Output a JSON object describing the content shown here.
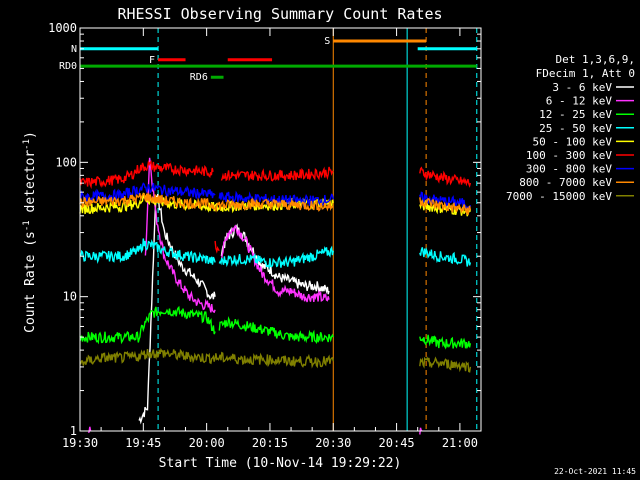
{
  "chart_data": {
    "type": "line",
    "title": "RHESSI Observing Summary Count Rates",
    "xlabel": "Start Time (10-Nov-14 19:29:22)",
    "ylabel_main": "Count Rate (s",
    "ylabel_sup1": "-1",
    "ylabel_mid": " detector",
    "ylabel_sup2": "-1",
    "ylabel_end": ")",
    "y_scale": "log",
    "ylim": [
      1,
      1000
    ],
    "xlim_minutes_after_1930": [
      0,
      95
    ],
    "x_ticks": [
      {
        "t": 0,
        "label": "19:30"
      },
      {
        "t": 15,
        "label": "19:45"
      },
      {
        "t": 30,
        "label": "20:00"
      },
      {
        "t": 45,
        "label": "20:15"
      },
      {
        "t": 60,
        "label": "20:30"
      },
      {
        "t": 75,
        "label": "20:45"
      },
      {
        "t": 90,
        "label": "21:00"
      }
    ],
    "y_ticks": [
      {
        "v": 1,
        "label": "1"
      },
      {
        "v": 10,
        "label": "10"
      },
      {
        "v": 100,
        "label": "100"
      },
      {
        "v": 1000,
        "label": "1000"
      }
    ],
    "legend_header": [
      "Det 1,3,6,9,",
      "FDecim 1, Att 0"
    ],
    "series": [
      {
        "name": "3 - 6 keV",
        "color": "#ffffff",
        "segments": [
          {
            "x": [
              14,
              16,
              18,
              19,
              20,
              22,
              24,
              26,
              28,
              29,
              30,
              31,
              32
            ],
            "y": [
              1.2,
              1.5,
              60,
              45,
              30,
              22,
              17,
              15,
              13,
              12,
              11,
              10,
              10
            ]
          },
          {
            "x": [
              33.5,
              35,
              37,
              39,
              41,
              43,
              45,
              47,
              50,
              53,
              56,
              59
            ],
            "y": [
              22,
              28,
              32,
              28,
              22,
              17,
              16,
              14,
              13,
              12,
              12,
              11
            ]
          }
        ]
      },
      {
        "name": "6 - 12 keV",
        "color": "#ff33ff",
        "segments": [
          {
            "x": [
              2,
              2.5
            ],
            "y": [
              1,
              1
            ]
          },
          {
            "x": [
              15.5,
              16.5,
              18,
              19,
              20,
              22,
              24,
              26,
              28,
              30,
              32
            ],
            "y": [
              20,
              110,
              40,
              28,
              20,
              15,
              12,
              10,
              9,
              8.5,
              8
            ]
          },
          {
            "x": [
              33.5,
              35,
              37,
              39,
              41,
              43,
              45,
              47,
              50,
              53,
              56,
              59
            ],
            "y": [
              20,
              30,
              33,
              27,
              20,
              15,
              13,
              11,
              11,
              10,
              10,
              9.5
            ]
          },
          {
            "x": [
              80.5,
              81
            ],
            "y": [
              1,
              1
            ]
          }
        ]
      },
      {
        "name": "12 - 25 keV",
        "color": "#00ff00",
        "segments": [
          {
            "x": [
              0,
              14,
              15,
              17,
              20,
              25,
              30,
              32
            ],
            "y": [
              5,
              5,
              6,
              7.5,
              8,
              7.5,
              7,
              5.5
            ]
          },
          {
            "x": [
              33,
              35,
              40,
              45,
              50,
              55,
              60
            ],
            "y": [
              6,
              6.5,
              6,
              5.5,
              5,
              5,
              5
            ]
          },
          {
            "x": [
              80.5,
              85,
              90,
              92.5
            ],
            "y": [
              5,
              4.5,
              4.5,
              4.5
            ]
          }
        ]
      },
      {
        "name": "25 - 50 keV",
        "color": "#00ffff",
        "segments": [
          {
            "x": [
              0,
              5,
              10,
              14,
              15,
              17,
              20,
              25,
              30,
              32
            ],
            "y": [
              20,
              20,
              20,
              22,
              25,
              24,
              22,
              20,
              19,
              18
            ]
          },
          {
            "x": [
              33,
              35,
              40,
              45,
              50,
              55,
              60
            ],
            "y": [
              18,
              19,
              19,
              18,
              18,
              20,
              22
            ]
          },
          {
            "x": [
              80.5,
              85,
              90,
              92.5
            ],
            "y": [
              22,
              20,
              19,
              18
            ]
          }
        ]
      },
      {
        "name": "50 - 100 keV",
        "color": "#ffff00",
        "segments": [
          {
            "x": [
              0,
              5,
              10,
              14,
              15,
              17,
              20,
              25,
              30,
              32,
              33,
              35,
              40,
              45,
              50,
              55,
              60
            ],
            "y": [
              45,
              46,
              47,
              50,
              55,
              52,
              50,
              48,
              47,
              46,
              46,
              47,
              48,
              48,
              49,
              50,
              50
            ]
          },
          {
            "x": [
              80.5,
              85,
              90,
              92.5
            ],
            "y": [
              48,
              46,
              44,
              43
            ]
          }
        ]
      },
      {
        "name": "100 - 300 keV",
        "color": "#ff0000",
        "segments": [
          {
            "x": [
              0,
              5,
              10,
              12,
              14,
              16,
              18,
              20,
              25,
              30,
              31.5
            ],
            "y": [
              70,
              72,
              75,
              80,
              90,
              95,
              92,
              90,
              88,
              85,
              85
            ]
          },
          {
            "x": [
              32,
              33
            ],
            "y": [
              25,
              22
            ]
          },
          {
            "x": [
              33.5,
              35,
              40,
              45,
              50,
              55,
              60
            ],
            "y": [
              80,
              80,
              80,
              80,
              80,
              82,
              85
            ]
          },
          {
            "x": [
              80.5,
              85,
              90,
              92.5
            ],
            "y": [
              85,
              78,
              72,
              70
            ]
          }
        ]
      },
      {
        "name": "300 - 800 keV",
        "color": "#0000ff",
        "segments": [
          {
            "x": [
              0,
              5,
              10,
              12,
              14,
              16,
              18,
              20,
              25,
              30,
              32
            ],
            "y": [
              55,
              56,
              57,
              60,
              63,
              65,
              64,
              62,
              60,
              58,
              57
            ]
          },
          {
            "x": [
              33,
              35,
              40,
              45,
              50,
              55,
              60
            ],
            "y": [
              55,
              55,
              54,
              53,
              52,
              52,
              53
            ]
          },
          {
            "x": [
              80.5,
              85,
              90,
              92.5
            ],
            "y": [
              55,
              52,
              50,
              48
            ]
          }
        ]
      },
      {
        "name": "800 - 7000 keV",
        "color": "#ff8800",
        "segments": [
          {
            "x": [
              0,
              5,
              10,
              14,
              15,
              17,
              20,
              25,
              30,
              32,
              33,
              35,
              40,
              45,
              50,
              55,
              60
            ],
            "y": [
              50,
              51,
              52,
              54,
              56,
              54,
              52,
              50,
              49,
              48,
              48,
              48,
              49,
              49,
              48,
              48,
              47
            ]
          },
          {
            "x": [
              80.5,
              85,
              90,
              92.5
            ],
            "y": [
              52,
              48,
              45,
              44
            ]
          }
        ]
      },
      {
        "name": "7000 - 15000 keV",
        "color": "#808000",
        "segments": [
          {
            "x": [
              0,
              5,
              10,
              14,
              16,
              20,
              25,
              30,
              35,
              40,
              45,
              50,
              55,
              60
            ],
            "y": [
              3.2,
              3.5,
              3.5,
              3.6,
              3.8,
              3.8,
              3.6,
              3.5,
              3.5,
              3.4,
              3.4,
              3.3,
              3.3,
              3.3
            ]
          },
          {
            "x": [
              80.5,
              85,
              90,
              92.5
            ],
            "y": [
              3.2,
              3.2,
              3.1,
              3.0
            ]
          }
        ]
      }
    ],
    "state_bars": [
      {
        "label": "N",
        "color": "#00ffff",
        "y": 700,
        "x": [
          0,
          18.5
        ]
      },
      {
        "label": "",
        "color": "#00ffff",
        "y": 700,
        "x": [
          80,
          94
        ]
      },
      {
        "label": "F",
        "color": "#ff0000",
        "y": 580,
        "x": [
          18.5,
          25
        ]
      },
      {
        "label": "",
        "color": "#ff0000",
        "y": 580,
        "x": [
          35,
          45.5
        ]
      },
      {
        "label": "RD0",
        "color": "#00aa00",
        "y": 520,
        "x": [
          0,
          94
        ]
      },
      {
        "label": "RD6",
        "color": "#00aa00",
        "y": 430,
        "x": [
          31,
          34
        ]
      },
      {
        "label": "S",
        "color": "#ff8800",
        "y": 800,
        "x": [
          60,
          82
        ]
      }
    ],
    "vlines": [
      {
        "t": 0,
        "color": "#00ffff",
        "dashed": true
      },
      {
        "t": 18.5,
        "color": "#00ffff",
        "dashed": true
      },
      {
        "t": 60,
        "color": "#ff8800",
        "dashed": false
      },
      {
        "t": 77.5,
        "color": "#00ffff",
        "dashed": false
      },
      {
        "t": 82,
        "color": "#ff8800",
        "dashed": true
      },
      {
        "t": 94,
        "color": "#00ffff",
        "dashed": true
      }
    ],
    "footer_date": "22-Oct-2021 11:45"
  }
}
